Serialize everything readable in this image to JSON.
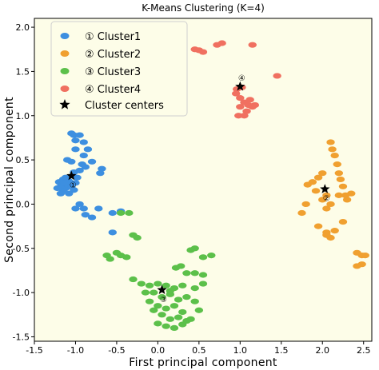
{
  "chart_data": {
    "type": "scatter",
    "title": "K-Means Clustering (K=4)",
    "xlabel": "First principal component",
    "ylabel": "Second principal component",
    "xlim": [
      -1.5,
      2.6
    ],
    "ylim": [
      -1.55,
      2.1
    ],
    "xticks": [
      -1.5,
      -1.0,
      -0.5,
      0.0,
      0.5,
      1.0,
      1.5,
      2.0,
      2.5
    ],
    "yticks": [
      -1.5,
      -1.0,
      -0.5,
      0.0,
      0.5,
      1.0,
      1.5,
      2.0
    ],
    "xtick_labels": [
      "-1.5",
      "-1.0",
      "-0.5",
      "0.0",
      "0.5",
      "1.0",
      "1.5",
      "2.0",
      "2.5"
    ],
    "ytick_labels": [
      "-1.5",
      "-1.0",
      "-0.5",
      "0.0",
      "0.5",
      "1.0",
      "1.5",
      "2.0"
    ],
    "background": "#fdfde8",
    "grid": false,
    "legend_placement": "top-left",
    "series": [
      {
        "name": "Cluster1",
        "marker": "①",
        "color": "#3d8fe0",
        "points": [
          [
            -1.2,
            0.25
          ],
          [
            -1.18,
            0.2
          ],
          [
            -1.15,
            0.28
          ],
          [
            -1.12,
            0.18
          ],
          [
            -1.1,
            0.22
          ],
          [
            -1.08,
            0.26
          ],
          [
            -1.15,
            0.15
          ],
          [
            -1.05,
            0.2
          ],
          [
            -1.02,
            0.16
          ],
          [
            -1.12,
            0.3
          ],
          [
            -1.22,
            0.18
          ],
          [
            -1.18,
            0.12
          ],
          [
            -1.08,
            0.12
          ],
          [
            -1.0,
            0.24
          ],
          [
            -1.14,
            0.24
          ],
          [
            -0.98,
            0.3
          ],
          [
            -1.05,
            0.8
          ],
          [
            -1.02,
            0.78
          ],
          [
            -0.95,
            0.78
          ],
          [
            -1.0,
            0.72
          ],
          [
            -0.9,
            0.7
          ],
          [
            -1.0,
            0.62
          ],
          [
            -0.9,
            0.55
          ],
          [
            -0.85,
            0.62
          ],
          [
            -1.1,
            0.5
          ],
          [
            -1.05,
            0.48
          ],
          [
            -0.92,
            0.45
          ],
          [
            -0.88,
            0.42
          ],
          [
            -0.8,
            0.48
          ],
          [
            -1.02,
            0.36
          ],
          [
            -0.95,
            0.38
          ],
          [
            -0.7,
            0.35
          ],
          [
            -0.68,
            0.4
          ],
          [
            -0.95,
            0.0
          ],
          [
            -0.9,
            -0.05
          ],
          [
            -0.88,
            -0.12
          ],
          [
            -0.8,
            -0.15
          ],
          [
            -1.0,
            -0.05
          ],
          [
            -0.72,
            -0.05
          ],
          [
            -0.55,
            -0.1
          ],
          [
            -0.45,
            -0.08
          ],
          [
            -0.55,
            -0.32
          ]
        ]
      },
      {
        "name": "Cluster2",
        "marker": "②",
        "color": "#f0a030",
        "points": [
          [
            2.1,
            0.7
          ],
          [
            2.12,
            0.62
          ],
          [
            2.15,
            0.55
          ],
          [
            2.18,
            0.45
          ],
          [
            2.2,
            0.35
          ],
          [
            2.22,
            0.28
          ],
          [
            2.25,
            0.2
          ],
          [
            2.28,
            0.1
          ],
          [
            2.3,
            0.05
          ],
          [
            2.35,
            0.12
          ],
          [
            2.0,
            0.35
          ],
          [
            1.95,
            0.3
          ],
          [
            1.88,
            0.25
          ],
          [
            1.82,
            0.22
          ],
          [
            1.92,
            0.15
          ],
          [
            2.05,
            0.1
          ],
          [
            2.0,
            0.05
          ],
          [
            2.05,
            -0.05
          ],
          [
            2.1,
            0.0
          ],
          [
            2.2,
            0.1
          ],
          [
            1.8,
            0.0
          ],
          [
            1.75,
            -0.1
          ],
          [
            1.95,
            -0.25
          ],
          [
            2.05,
            -0.32
          ],
          [
            2.1,
            -0.38
          ],
          [
            2.05,
            -0.35
          ],
          [
            2.15,
            -0.3
          ],
          [
            2.42,
            -0.55
          ],
          [
            2.48,
            -0.58
          ],
          [
            2.52,
            -0.58
          ],
          [
            2.48,
            -0.68
          ],
          [
            2.42,
            -0.7
          ],
          [
            2.25,
            -0.2
          ]
        ]
      },
      {
        "name": "Cluster3",
        "marker": "③",
        "color": "#5cc04a",
        "points": [
          [
            -0.45,
            -0.1
          ],
          [
            -0.35,
            -0.1
          ],
          [
            -0.3,
            -0.35
          ],
          [
            -0.25,
            -0.38
          ],
          [
            -0.5,
            -0.55
          ],
          [
            -0.45,
            -0.58
          ],
          [
            -0.38,
            -0.6
          ],
          [
            -0.62,
            -0.58
          ],
          [
            -0.58,
            -0.62
          ],
          [
            0.4,
            -0.52
          ],
          [
            0.45,
            -0.5
          ],
          [
            0.55,
            -0.6
          ],
          [
            0.65,
            -0.58
          ],
          [
            0.22,
            -0.72
          ],
          [
            0.28,
            -0.7
          ],
          [
            0.35,
            -0.78
          ],
          [
            0.45,
            -0.78
          ],
          [
            0.55,
            -0.8
          ],
          [
            -0.3,
            -0.85
          ],
          [
            -0.2,
            -0.9
          ],
          [
            -0.1,
            -0.92
          ],
          [
            0.0,
            -0.9
          ],
          [
            0.1,
            -0.92
          ],
          [
            0.2,
            -0.95
          ],
          [
            0.3,
            -0.92
          ],
          [
            0.45,
            -0.95
          ],
          [
            0.55,
            -0.9
          ],
          [
            -0.05,
            -1.0
          ],
          [
            0.05,
            -1.05
          ],
          [
            0.15,
            -1.02
          ],
          [
            0.25,
            -1.08
          ],
          [
            0.35,
            -1.05
          ],
          [
            -0.1,
            -1.1
          ],
          [
            0.0,
            -1.15
          ],
          [
            0.1,
            -1.18
          ],
          [
            0.2,
            -1.15
          ],
          [
            0.3,
            -1.22
          ],
          [
            -0.05,
            -1.2
          ],
          [
            0.05,
            -1.25
          ],
          [
            0.15,
            -1.3
          ],
          [
            0.25,
            -1.28
          ],
          [
            0.35,
            -1.32
          ],
          [
            0.0,
            -1.35
          ],
          [
            0.1,
            -1.38
          ],
          [
            0.2,
            -1.4
          ],
          [
            0.3,
            -1.36
          ],
          [
            0.4,
            -1.3
          ],
          [
            0.45,
            -1.1
          ],
          [
            0.5,
            -1.2
          ],
          [
            -0.15,
            -1.0
          ],
          [
            0.15,
            -0.98
          ]
        ]
      },
      {
        "name": "Cluster4",
        "marker": "④",
        "color": "#f07060",
        "points": [
          [
            0.45,
            1.75
          ],
          [
            0.5,
            1.74
          ],
          [
            0.55,
            1.72
          ],
          [
            0.72,
            1.8
          ],
          [
            0.78,
            1.82
          ],
          [
            1.15,
            1.8
          ],
          [
            1.45,
            1.45
          ],
          [
            0.95,
            1.25
          ],
          [
            1.0,
            1.2
          ],
          [
            1.05,
            1.15
          ],
          [
            1.1,
            1.12
          ],
          [
            1.0,
            1.1
          ],
          [
            1.08,
            1.05
          ],
          [
            1.15,
            1.1
          ],
          [
            1.18,
            1.12
          ],
          [
            0.98,
            1.0
          ],
          [
            1.05,
            1.0
          ],
          [
            1.12,
            1.18
          ],
          [
            0.96,
            1.3
          ],
          [
            1.02,
            1.32
          ]
        ]
      }
    ],
    "cluster_centers": {
      "name": "Cluster centers",
      "points": [
        [
          -1.05,
          0.32
        ],
        [
          2.03,
          0.17
        ],
        [
          0.05,
          -0.97
        ],
        [
          1.0,
          1.33
        ]
      ],
      "labels": [
        "①",
        "②",
        "③",
        "④"
      ]
    }
  }
}
